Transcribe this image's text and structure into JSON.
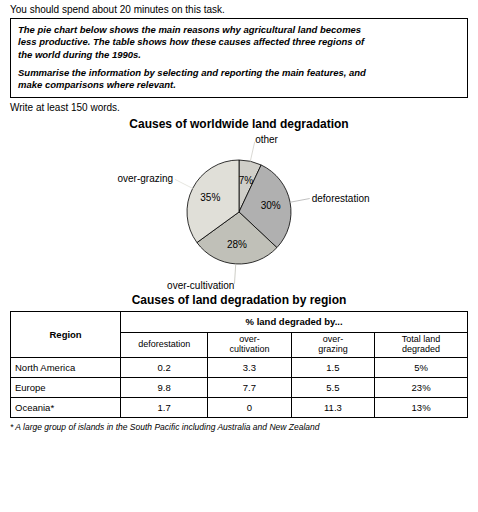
{
  "chart_data": [
    {
      "type": "pie",
      "title": "Causes of worldwide land degradation",
      "annotations": [
        "You should spend about 20 minutes on this task.",
        "The pie chart below shows the main reasons why agricultural land becomes\nless productive. The table shows how these causes affected three regions of\nthe world during the 1990s.",
        "Summarise the information by selecting and reporting the main features, and\nmake comparisons where relevant.",
        "Write at least 150 words."
      ],
      "categories": [
        "other",
        "deforestation",
        "over-cultivation",
        "over-grazing"
      ],
      "values": [
        7,
        30,
        28,
        35
      ],
      "value_labels": [
        "7%",
        "30%",
        "28%",
        "35%"
      ],
      "colors": [
        "#d0cfc9",
        "#b0b0b0",
        "#c0c0b8",
        "#e0dfd8"
      ],
      "data_labels": true
    },
    {
      "type": "table",
      "title": "Causes of land degradation by region",
      "columns": [
        "Region",
        "deforestation",
        "over-\ncultivation",
        "over-\ngrazing",
        "Total land\ndegraded"
      ],
      "column_group": "% land degraded by...",
      "rows": [
        [
          "North America",
          "0.2",
          "3.3",
          "1.5",
          "5%"
        ],
        [
          "Europe",
          "9.8",
          "7.7",
          "5.5",
          "23%"
        ],
        [
          "Oceania*",
          "1.7",
          "0",
          "11.3",
          "13%"
        ]
      ],
      "annotations": [
        "* A large group of islands in the South Pacific including Australia and New Zealand"
      ]
    }
  ]
}
